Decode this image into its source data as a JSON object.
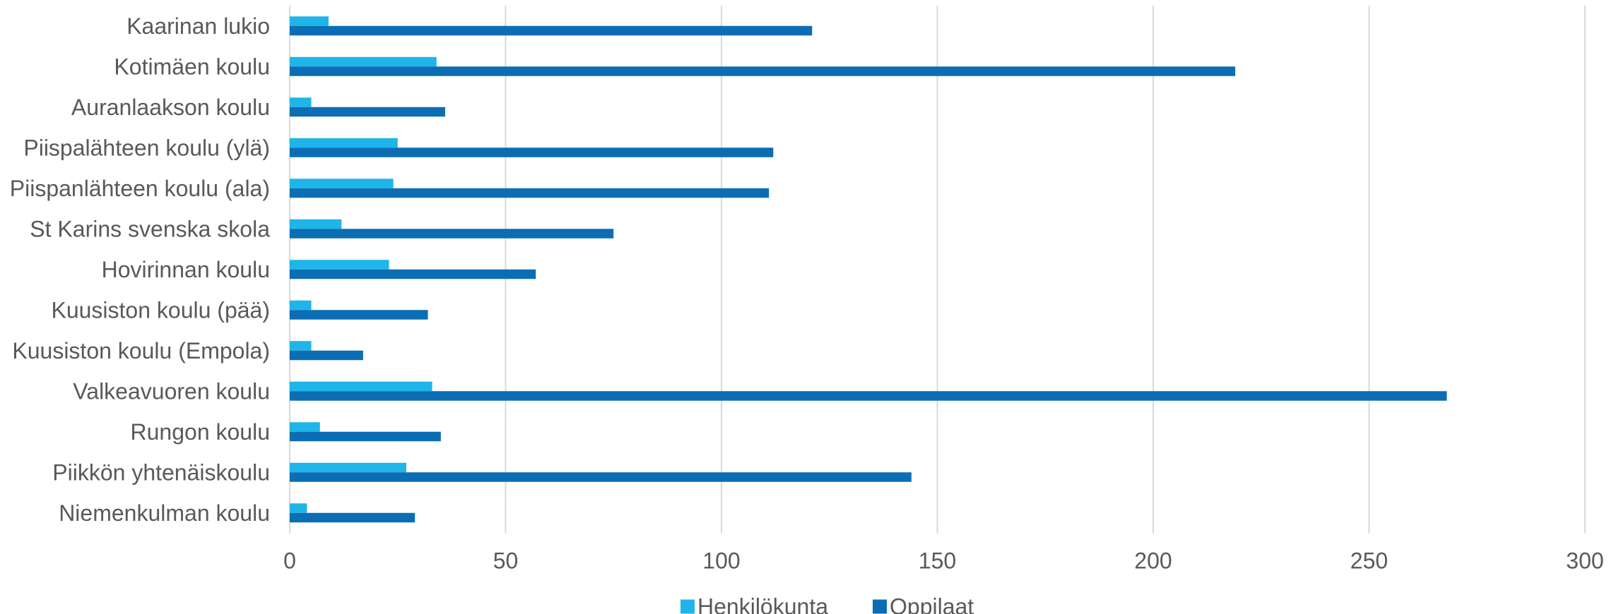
{
  "chart_data": {
    "type": "bar",
    "orientation": "horizontal",
    "categories": [
      "Kaarinan lukio",
      "Kotimäen koulu",
      "Auranlaakson koulu",
      "Piispalähteen koulu (ylä)",
      "Piispanlähteen koulu (ala)",
      "St Karins svenska skola",
      "Hovirinnan koulu",
      "Kuusiston koulu (pää)",
      "Kuusiston koulu (Empola)",
      "Valkeavuoren koulu",
      "Rungon koulu",
      "Piikkön yhtenäiskoulu",
      "Niemenkulman koulu"
    ],
    "series": [
      {
        "name": "Henkilökunta",
        "color": "#1fb5e8",
        "values": [
          9,
          34,
          5,
          25,
          24,
          12,
          23,
          5,
          5,
          33,
          7,
          27,
          4
        ]
      },
      {
        "name": "Oppilaat",
        "color": "#0b6db4",
        "values": [
          121,
          219,
          36,
          112,
          111,
          75,
          57,
          32,
          17,
          268,
          35,
          144,
          29
        ]
      }
    ],
    "xlim": [
      0,
      300
    ],
    "xticks": [
      "0",
      "50",
      "100",
      "150",
      "200",
      "250",
      "300"
    ],
    "xlabel": "",
    "ylabel": "",
    "title": "",
    "grid": "vertical",
    "legend": "bottom-center"
  }
}
